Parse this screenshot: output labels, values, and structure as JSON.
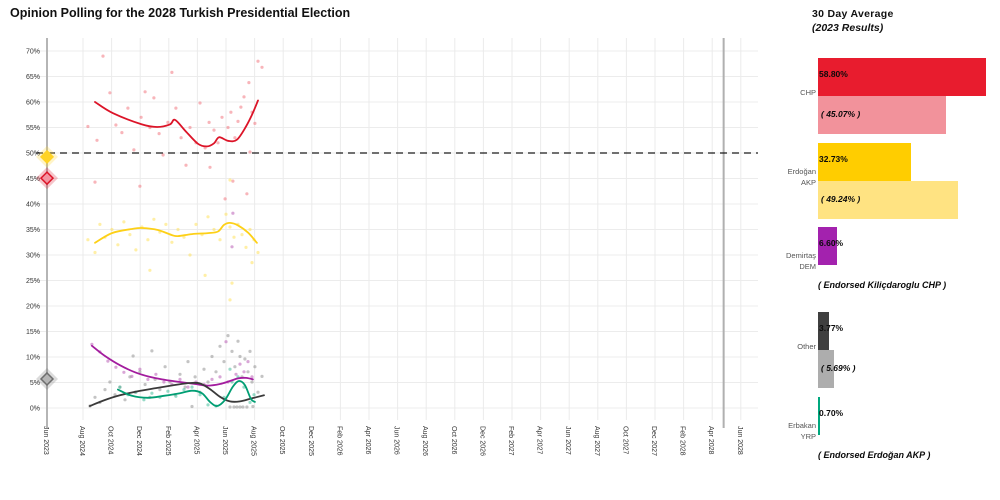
{
  "title": "Opinion Polling for the 2028 Turkish Presidential Election",
  "panel": {
    "title_line1": "30 Day  Average",
    "title_line2": "(2023 Results)",
    "groups": [
      {
        "id": "chp",
        "label_lines": [
          "CHP"
        ],
        "avg_label": "58.80%",
        "avg_value": 58.8,
        "avg_color": "#e81c2e",
        "result_label": "( 45.07% )",
        "result_value": 45.07,
        "result_color": "#f2929b",
        "note": null
      },
      {
        "id": "akp",
        "label_lines": [
          "Erdoğan",
          "AKP"
        ],
        "avg_label": "32.73%",
        "avg_value": 32.73,
        "avg_color": "#ffcd00",
        "result_label": "( 49.24% )",
        "result_value": 49.24,
        "result_color": "#ffe382",
        "note": null
      },
      {
        "id": "dem",
        "label_lines": [
          "Demirtaş",
          "DEM"
        ],
        "avg_label": "6.60%",
        "avg_value": 6.6,
        "avg_color": "#a322ae",
        "result_label": null,
        "result_value": null,
        "result_color": null,
        "note": "( Endorsed Kiliçdaroglu CHP )"
      },
      {
        "id": "other",
        "label_lines": [
          "Other"
        ],
        "avg_label": "3.77%",
        "avg_value": 3.77,
        "avg_color": "#3f3f3f",
        "result_label": "( 5.69% )",
        "result_value": 5.69,
        "result_color": "#adadad",
        "note": null
      },
      {
        "id": "yrp",
        "label_lines": [
          "Erbakan",
          "YRP"
        ],
        "avg_label": "0.70%",
        "avg_value": 0.7,
        "avg_color": "#00a87e",
        "result_label": null,
        "result_value": null,
        "result_color": null,
        "note": "( Endorsed Erdoğan AKP )"
      }
    ]
  },
  "chart_data": {
    "type": "line+scatter",
    "title": "Opinion Polling for the 2028 Turkish Presidential Election",
    "x_ticks": [
      "Jun 2023",
      "Aug 2024",
      "Oct 2024",
      "Dec 2024",
      "Feb 2025",
      "Apr 2025",
      "Jun 2025",
      "Aug 2025",
      "Oct 2025",
      "Dec 2025",
      "Feb 2026",
      "Apr 2026",
      "Jun 2026",
      "Aug 2026",
      "Oct 2026",
      "Dec 2026",
      "Feb 2027",
      "Apr 2027",
      "Jun 2027",
      "Aug 2027",
      "Oct 2027",
      "Dec 2027",
      "Feb 2028",
      "Apr 2028",
      "Jun 2028"
    ],
    "y_ticks": [
      0,
      5,
      10,
      15,
      20,
      25,
      30,
      35,
      40,
      45,
      50,
      55,
      60,
      65,
      70
    ],
    "ylim": [
      0,
      72.5
    ],
    "grid": true,
    "majority_line": 50,
    "election_day_t": 23.4,
    "election_marker_t": 0,
    "series": [
      {
        "name": "CHP",
        "line_color": "#dc1428",
        "point_color": "#f26b76",
        "marker_2023": {
          "value": 45.07,
          "fill": "#f493a0",
          "stroke": "#dc1428"
        },
        "line": [
          [
            1.42,
            60.0
          ],
          [
            2.05,
            57.8
          ],
          [
            3.06,
            55.6
          ],
          [
            3.59,
            55.1
          ],
          [
            4.04,
            55.6
          ],
          [
            4.22,
            56.5
          ],
          [
            4.6,
            54.2
          ],
          [
            5.02,
            51.8
          ],
          [
            5.34,
            51.3
          ],
          [
            5.58,
            51.9
          ],
          [
            5.76,
            53.1
          ],
          [
            6.07,
            52.4
          ],
          [
            6.38,
            52.6
          ],
          [
            6.7,
            55.2
          ],
          [
            6.91,
            57.5
          ],
          [
            7.12,
            60.3
          ]
        ],
        "points": [
          [
            1.17,
            55.2
          ],
          [
            1.42,
            44.3
          ],
          [
            1.49,
            52.5
          ],
          [
            1.7,
            69.0
          ],
          [
            1.94,
            61.8
          ],
          [
            2.15,
            55.5
          ],
          [
            2.36,
            54.0
          ],
          [
            2.57,
            58.8
          ],
          [
            2.78,
            50.6
          ],
          [
            2.99,
            43.5
          ],
          [
            3.03,
            57.0
          ],
          [
            3.17,
            62.0
          ],
          [
            3.34,
            55.0
          ],
          [
            3.48,
            60.8
          ],
          [
            3.66,
            53.8
          ],
          [
            3.8,
            49.6
          ],
          [
            3.97,
            56.0
          ],
          [
            4.11,
            65.8
          ],
          [
            4.25,
            58.8
          ],
          [
            4.43,
            53.0
          ],
          [
            4.6,
            47.6
          ],
          [
            4.74,
            55.0
          ],
          [
            4.95,
            52.0
          ],
          [
            5.09,
            59.8
          ],
          [
            5.27,
            51.0
          ],
          [
            5.41,
            56.0
          ],
          [
            5.44,
            47.2
          ],
          [
            5.58,
            54.5
          ],
          [
            5.72,
            52.0
          ],
          [
            5.86,
            57.0
          ],
          [
            5.97,
            41.0
          ],
          [
            6.07,
            55.0
          ],
          [
            6.17,
            58.0
          ],
          [
            6.24,
            44.5
          ],
          [
            6.31,
            53.0
          ],
          [
            6.42,
            56.2
          ],
          [
            6.52,
            59.0
          ],
          [
            6.63,
            61.0
          ],
          [
            6.73,
            42.0
          ],
          [
            6.8,
            63.8
          ],
          [
            6.84,
            50.2
          ],
          [
            6.91,
            58.0
          ],
          [
            7.01,
            55.8
          ],
          [
            7.12,
            68.0
          ],
          [
            7.26,
            66.8
          ]
        ]
      },
      {
        "name": "Erdoğan AKP",
        "line_color": "#fdd017",
        "point_color": "#ffdf4d",
        "marker_2023": {
          "value": 49.24,
          "fill": "#ffd324",
          "stroke": "#ffd324"
        },
        "line": [
          [
            1.42,
            32.4
          ],
          [
            2.01,
            34.3
          ],
          [
            2.71,
            35.1
          ],
          [
            3.06,
            35.3
          ],
          [
            3.62,
            34.9
          ],
          [
            4.11,
            33.9
          ],
          [
            4.32,
            33.7
          ],
          [
            4.81,
            34.1
          ],
          [
            5.37,
            34.3
          ],
          [
            5.72,
            34.6
          ],
          [
            5.93,
            35.9
          ],
          [
            6.14,
            36.3
          ],
          [
            6.42,
            35.8
          ],
          [
            6.77,
            34.4
          ],
          [
            7.08,
            32.4
          ]
        ],
        "points": [
          [
            1.17,
            33.0
          ],
          [
            1.42,
            30.5
          ],
          [
            1.59,
            36.0
          ],
          [
            1.77,
            33.5
          ],
          [
            2.01,
            35.0
          ],
          [
            2.22,
            32.0
          ],
          [
            2.43,
            36.5
          ],
          [
            2.64,
            34.0
          ],
          [
            2.85,
            31.0
          ],
          [
            3.06,
            35.5
          ],
          [
            3.27,
            33.0
          ],
          [
            3.34,
            27.0
          ],
          [
            3.48,
            37.0
          ],
          [
            3.69,
            34.5
          ],
          [
            3.9,
            36.0
          ],
          [
            4.11,
            32.5
          ],
          [
            4.32,
            35.0
          ],
          [
            4.53,
            33.5
          ],
          [
            4.74,
            30.0
          ],
          [
            4.95,
            36.0
          ],
          [
            5.16,
            34.0
          ],
          [
            5.27,
            26.0
          ],
          [
            5.37,
            37.5
          ],
          [
            5.58,
            35.0
          ],
          [
            5.79,
            33.0
          ],
          [
            6.0,
            38.0
          ],
          [
            6.14,
            44.7
          ],
          [
            6.14,
            35.5
          ],
          [
            6.21,
            24.5
          ],
          [
            6.28,
            33.5
          ],
          [
            6.14,
            21.2
          ],
          [
            6.42,
            36.0
          ],
          [
            6.56,
            34.0
          ],
          [
            6.7,
            31.5
          ],
          [
            6.84,
            35.0
          ],
          [
            6.91,
            28.5
          ],
          [
            6.98,
            33.0
          ],
          [
            7.12,
            30.5
          ]
        ]
      },
      {
        "name": "Demirtaş DEM",
        "line_color": "#a31c9e",
        "point_color": "#b44fb0",
        "marker_2023": null,
        "line": [
          [
            1.31,
            12.2
          ],
          [
            1.77,
            10.2
          ],
          [
            2.29,
            8.4
          ],
          [
            2.82,
            7.0
          ],
          [
            3.34,
            6.1
          ],
          [
            3.87,
            5.5
          ],
          [
            4.39,
            5.1
          ],
          [
            4.92,
            4.7
          ],
          [
            5.37,
            4.4
          ],
          [
            5.79,
            4.7
          ],
          [
            6.14,
            5.3
          ],
          [
            6.42,
            5.8
          ],
          [
            6.7,
            5.9
          ],
          [
            6.94,
            5.6
          ]
        ],
        "points": [
          [
            1.31,
            12.5
          ],
          [
            1.59,
            11.0
          ],
          [
            1.87,
            9.2
          ],
          [
            2.15,
            8.0
          ],
          [
            2.43,
            7.0
          ],
          [
            2.71,
            6.2
          ],
          [
            2.99,
            7.6
          ],
          [
            3.27,
            5.6
          ],
          [
            3.55,
            6.6
          ],
          [
            3.83,
            5.1
          ],
          [
            4.11,
            4.6
          ],
          [
            4.39,
            5.6
          ],
          [
            4.67,
            4.1
          ],
          [
            4.95,
            5.1
          ],
          [
            5.23,
            4.6
          ],
          [
            5.51,
            5.6
          ],
          [
            5.79,
            6.1
          ],
          [
            6.0,
            13.0
          ],
          [
            6.07,
            5.1
          ],
          [
            6.24,
            38.2
          ],
          [
            6.21,
            31.6
          ],
          [
            6.35,
            6.6
          ],
          [
            6.49,
            8.6
          ],
          [
            6.63,
            7.1
          ],
          [
            6.77,
            9.1
          ],
          [
            6.91,
            6.1
          ]
        ]
      },
      {
        "name": "Other",
        "line_color": "#3a3a3a",
        "point_color": "#8a8a8a",
        "marker_2023": {
          "value": 5.69,
          "fill": "#b5b5b5",
          "stroke": "#6e6e6e"
        },
        "line": [
          [
            1.24,
            0.4
          ],
          [
            1.73,
            1.5
          ],
          [
            2.29,
            2.5
          ],
          [
            2.92,
            3.3
          ],
          [
            3.55,
            3.9
          ],
          [
            4.18,
            4.5
          ],
          [
            4.74,
            4.9
          ],
          [
            5.09,
            4.8
          ],
          [
            5.44,
            3.7
          ],
          [
            5.79,
            2.2
          ],
          [
            6.14,
            1.3
          ],
          [
            6.49,
            1.3
          ],
          [
            6.91,
            1.9
          ],
          [
            7.33,
            2.5
          ]
        ],
        "points": [
          [
            1.24,
            0.4
          ],
          [
            1.42,
            2.1
          ],
          [
            1.59,
            1.1
          ],
          [
            1.77,
            3.6
          ],
          [
            1.94,
            5.1
          ],
          [
            2.12,
            2.6
          ],
          [
            2.29,
            4.1
          ],
          [
            2.47,
            1.6
          ],
          [
            2.64,
            6.1
          ],
          [
            2.75,
            10.2
          ],
          [
            2.82,
            3.1
          ],
          [
            2.99,
            7.1
          ],
          [
            3.17,
            4.6
          ],
          [
            3.34,
            2.1
          ],
          [
            3.41,
            11.2
          ],
          [
            3.52,
            5.6
          ],
          [
            3.69,
            3.6
          ],
          [
            3.87,
            8.1
          ],
          [
            4.04,
            5.1
          ],
          [
            4.22,
            2.6
          ],
          [
            4.39,
            6.6
          ],
          [
            4.57,
            4.1
          ],
          [
            4.67,
            9.1
          ],
          [
            4.81,
            0.3
          ],
          [
            4.92,
            6.1
          ],
          [
            5.09,
            3.1
          ],
          [
            5.23,
            7.6
          ],
          [
            5.37,
            5.1
          ],
          [
            5.51,
            10.1
          ],
          [
            5.65,
            7.1
          ],
          [
            5.79,
            12.1
          ],
          [
            5.93,
            9.1
          ],
          [
            6.07,
            14.2
          ],
          [
            6.14,
            0.2
          ],
          [
            6.21,
            11.1
          ],
          [
            6.28,
            0.2
          ],
          [
            6.31,
            8.1
          ],
          [
            6.38,
            0.2
          ],
          [
            6.42,
            13.1
          ],
          [
            6.49,
            0.2
          ],
          [
            6.49,
            10.1
          ],
          [
            6.56,
            6.1
          ],
          [
            6.59,
            0.2
          ],
          [
            6.66,
            9.6
          ],
          [
            6.73,
            0.2
          ],
          [
            6.77,
            7.1
          ],
          [
            6.84,
            11.1
          ],
          [
            6.91,
            5.1
          ],
          [
            6.94,
            0.3
          ],
          [
            7.01,
            8.1
          ],
          [
            7.12,
            3.1
          ],
          [
            7.26,
            6.2
          ]
        ]
      },
      {
        "name": "Erbakan YRP",
        "line_color": "#009e73",
        "point_color": "#33b891",
        "marker_2023": null,
        "line": [
          [
            2.22,
            3.6
          ],
          [
            2.71,
            2.4
          ],
          [
            3.27,
            2.0
          ],
          [
            3.83,
            2.4
          ],
          [
            4.39,
            2.9
          ],
          [
            4.81,
            3.4
          ],
          [
            5.16,
            2.9
          ],
          [
            5.44,
            1.2
          ],
          [
            5.69,
            0.4
          ],
          [
            5.97,
            1.6
          ],
          [
            6.24,
            4.2
          ],
          [
            6.45,
            5.3
          ],
          [
            6.66,
            4.5
          ],
          [
            6.87,
            1.8
          ],
          [
            7.01,
            1.2
          ]
        ],
        "points": [
          [
            2.29,
            4.1
          ],
          [
            2.57,
            2.6
          ],
          [
            2.85,
            3.1
          ],
          [
            3.13,
            1.6
          ],
          [
            3.41,
            2.9
          ],
          [
            3.69,
            2.1
          ],
          [
            3.97,
            3.3
          ],
          [
            4.25,
            2.3
          ],
          [
            4.53,
            3.6
          ],
          [
            4.81,
            4.1
          ],
          [
            5.09,
            2.6
          ],
          [
            5.37,
            0.6
          ],
          [
            5.65,
            0.4
          ],
          [
            5.93,
            2.1
          ],
          [
            6.14,
            7.6
          ],
          [
            6.21,
            5.1
          ],
          [
            6.42,
            6.1
          ],
          [
            6.63,
            4.1
          ],
          [
            6.84,
            1.1
          ],
          [
            6.98,
            2.6
          ]
        ]
      }
    ]
  }
}
